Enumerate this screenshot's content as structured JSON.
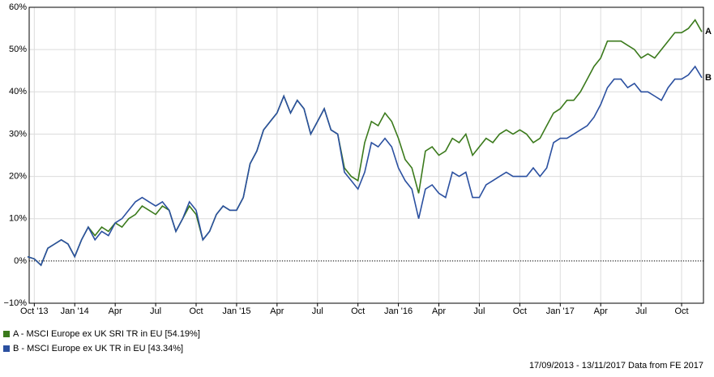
{
  "chart_data": {
    "type": "line",
    "categories": [
      null,
      "Oct '13",
      null,
      null,
      null,
      null,
      null,
      "Jan '14",
      null,
      null,
      null,
      null,
      null,
      "Apr",
      null,
      null,
      null,
      null,
      null,
      "Jul",
      null,
      null,
      null,
      null,
      null,
      "Oct",
      null,
      null,
      null,
      null,
      null,
      "Jan '15",
      null,
      null,
      null,
      null,
      null,
      "Apr",
      null,
      null,
      null,
      null,
      null,
      "Jul",
      null,
      null,
      null,
      null,
      null,
      "Oct",
      null,
      null,
      null,
      null,
      null,
      "Jan '16",
      null,
      null,
      null,
      null,
      null,
      "Apr",
      null,
      null,
      null,
      null,
      null,
      "Jul",
      null,
      null,
      null,
      null,
      null,
      "Oct",
      null,
      null,
      null,
      null,
      null,
      "Jan '17",
      null,
      null,
      null,
      null,
      null,
      "Apr",
      null,
      null,
      null,
      null,
      null,
      "Jul",
      null,
      null,
      null,
      null,
      null,
      "Oct",
      null,
      null,
      null
    ],
    "series": [
      {
        "name": "A - MSCI Europe ex UK SRI TR in EU [54.19%]",
        "end_label": "A",
        "color": "#3b7a1c",
        "values": [
          1,
          0.5,
          -1,
          3,
          4,
          5,
          4,
          1,
          5,
          8,
          6,
          8,
          7,
          9,
          8,
          10,
          11,
          13,
          12,
          11,
          13,
          12,
          7,
          10,
          13,
          11,
          5,
          7,
          11,
          13,
          12,
          12,
          15,
          23,
          26,
          31,
          33,
          35,
          39,
          35,
          38,
          36,
          30,
          33,
          36,
          31,
          30,
          22,
          20,
          19,
          28,
          33,
          32,
          35,
          33,
          29,
          24,
          22,
          16,
          26,
          27,
          25,
          26,
          29,
          28,
          30,
          25,
          27,
          29,
          28,
          30,
          31,
          30,
          31,
          30,
          28,
          29,
          32,
          35,
          36,
          38,
          38,
          40,
          43,
          46,
          48,
          52,
          52,
          52,
          51,
          50,
          48,
          49,
          48,
          50,
          52,
          54,
          54,
          55,
          57,
          54.19
        ]
      },
      {
        "name": "B - MSCI Europe ex UK TR in EU [43.34%]",
        "end_label": "B",
        "color": "#2b50a0",
        "values": [
          1,
          0.5,
          -1,
          3,
          4,
          5,
          4,
          1,
          5,
          8,
          5,
          7,
          6,
          9,
          10,
          12,
          14,
          15,
          14,
          13,
          14,
          12,
          7,
          10,
          14,
          12,
          5,
          7,
          11,
          13,
          12,
          12,
          15,
          23,
          26,
          31,
          33,
          35,
          39,
          35,
          38,
          36,
          30,
          33,
          36,
          31,
          30,
          21,
          19,
          17,
          21,
          28,
          27,
          29,
          27,
          22,
          19,
          17,
          10,
          17,
          18,
          16,
          15,
          21,
          20,
          21,
          15,
          15,
          18,
          19,
          20,
          21,
          20,
          20,
          20,
          22,
          20,
          22,
          28,
          29,
          29,
          30,
          31,
          32,
          34,
          37,
          41,
          43,
          43,
          41,
          42,
          40,
          40,
          39,
          38,
          41,
          43,
          43,
          44,
          46,
          43.34
        ]
      }
    ],
    "ylim": [
      -10,
      60
    ],
    "yticks": [
      {
        "value": -10,
        "label": "−10%"
      },
      {
        "value": 0,
        "label": "0%"
      },
      {
        "value": 10,
        "label": "10%"
      },
      {
        "value": 20,
        "label": "20%"
      },
      {
        "value": 30,
        "label": "30%"
      },
      {
        "value": 40,
        "label": "40%"
      },
      {
        "value": 50,
        "label": "50%"
      },
      {
        "value": 60,
        "label": "60%"
      }
    ],
    "reference_line": 0,
    "grid": true,
    "source": "17/09/2013 - 13/11/2017 Data from FE 2017"
  }
}
